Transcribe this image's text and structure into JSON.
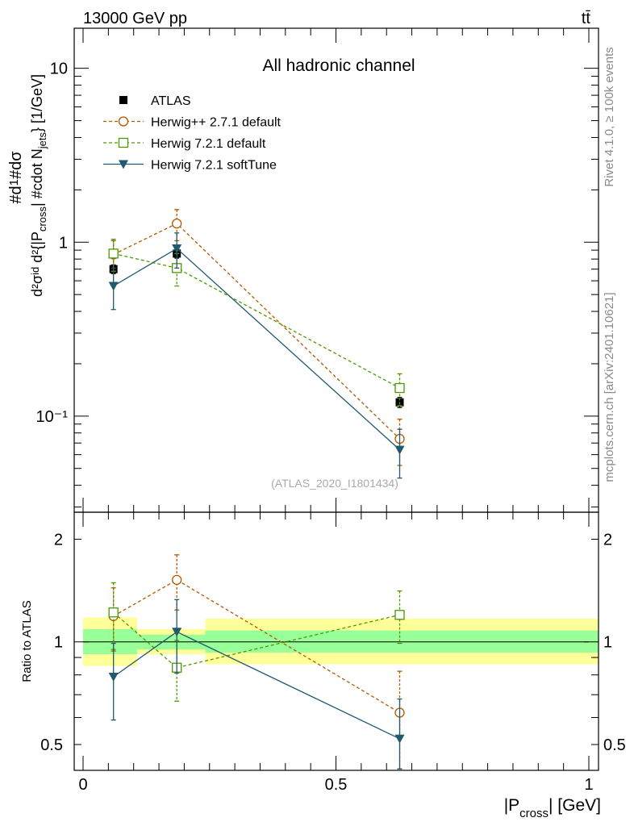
{
  "header": {
    "left": "13000 GeV pp",
    "right": "tt̄"
  },
  "side_labels": {
    "rivet": "Rivet 4.1.0, ≥ 100k events",
    "mcplots": "mcplots.cern.ch [arXiv:2401.10621]"
  },
  "watermark": "(ATLAS_2020_I1801434)",
  "colors": {
    "atlas": "#000000",
    "herwigpp": "#b35900",
    "herwig721": "#4c9900",
    "softtune": "#1f5a6e",
    "band_inner": "#99ff99",
    "band_outer": "#ffff99"
  },
  "chart_data": [
    {
      "type": "scatter",
      "scale": "log",
      "title": "All hadronic channel",
      "ylabel": "#d²σ/d²{|P_cross| #cdot N_jets} [1/GeV]",
      "ylabel_parts": {
        "a": "#d",
        "b": "1",
        "c": "#d",
        "d": "σ",
        "e": "d²σ",
        "f": "id",
        "g": "d²{|P",
        "h": "cross",
        "i": "| #cdot N",
        "j": "jets",
        "k": "} [1/GeV]"
      },
      "xlim": [
        0,
        1
      ],
      "ylim": [
        0.028,
        17
      ],
      "yticks": [
        {
          "label": "10",
          "value": 10
        },
        {
          "label": "1",
          "value": 1
        },
        {
          "label": "10⁻¹",
          "value": 0.1
        }
      ],
      "x": [
        0.06,
        0.185,
        0.625
      ],
      "series": [
        {
          "name": "ATLAS",
          "key": "atlas",
          "marker": "square-filled",
          "values": [
            0.7,
            0.86,
            0.12
          ],
          "err": [
            0.04,
            0.05,
            0.008
          ]
        },
        {
          "name": "Herwig++ 2.7.1 default",
          "key": "herwigpp",
          "marker": "circle-open",
          "dashed": true,
          "values": [
            0.85,
            1.28,
            0.074
          ],
          "err": [
            0.17,
            0.26,
            0.022
          ]
        },
        {
          "name": "Herwig 7.2.1 default",
          "key": "herwig721",
          "marker": "square-open",
          "dashed": true,
          "values": [
            0.86,
            0.71,
            0.145
          ],
          "err": [
            0.18,
            0.15,
            0.03
          ]
        },
        {
          "name": "Herwig 7.2.1 softTune",
          "key": "softtune",
          "marker": "triangle-down",
          "dashed": false,
          "values": [
            0.56,
            0.92,
            0.064
          ],
          "err": [
            0.15,
            0.21,
            0.02
          ]
        }
      ]
    },
    {
      "type": "scatter",
      "scale": "log",
      "ylabel": "Ratio to ATLAS",
      "xlabel": "|P_cross| [GeV]",
      "xlabel_parts": {
        "a": "|P",
        "b": "cross",
        "c": "| [GeV]"
      },
      "xlim": [
        0,
        1
      ],
      "ylim": [
        0.42,
        2.4
      ],
      "xticks": [
        {
          "label": "0",
          "value": 0
        },
        {
          "label": "0.5",
          "value": 0.5
        },
        {
          "label": "1",
          "value": 1
        }
      ],
      "yticks": [
        {
          "label": "2",
          "value": 2
        },
        {
          "label": "1",
          "value": 1
        },
        {
          "label": "0.5",
          "value": 0.5
        }
      ],
      "bands": [
        {
          "x0": 0.0,
          "x1": 0.12,
          "inner": [
            0.92,
            1.09
          ],
          "outer": [
            0.85,
            1.18
          ]
        },
        {
          "x0": 0.12,
          "x1": 0.25,
          "inner": [
            0.95,
            1.05
          ],
          "outer": [
            0.92,
            1.09
          ]
        },
        {
          "x0": 0.25,
          "x1": 1.0,
          "inner": [
            0.93,
            1.08
          ],
          "outer": [
            0.86,
            1.17
          ]
        }
      ],
      "x": [
        0.06,
        0.185,
        0.625
      ],
      "series": [
        {
          "name": "Herwig++ 2.7.1 default",
          "key": "herwigpp",
          "marker": "circle-open",
          "dashed": true,
          "values": [
            1.19,
            1.52,
            0.62
          ],
          "err": [
            0.25,
            0.28,
            0.2
          ]
        },
        {
          "name": "Herwig 7.2.1 default",
          "key": "herwig721",
          "marker": "square-open",
          "dashed": true,
          "values": [
            1.22,
            0.84,
            1.2
          ],
          "err": [
            0.27,
            0.17,
            0.21
          ]
        },
        {
          "name": "Herwig 7.2.1 softTune",
          "key": "softtune",
          "marker": "triangle-down",
          "dashed": false,
          "values": [
            0.79,
            1.07,
            0.52
          ],
          "err": [
            0.2,
            0.26,
            0.16
          ]
        }
      ]
    }
  ]
}
